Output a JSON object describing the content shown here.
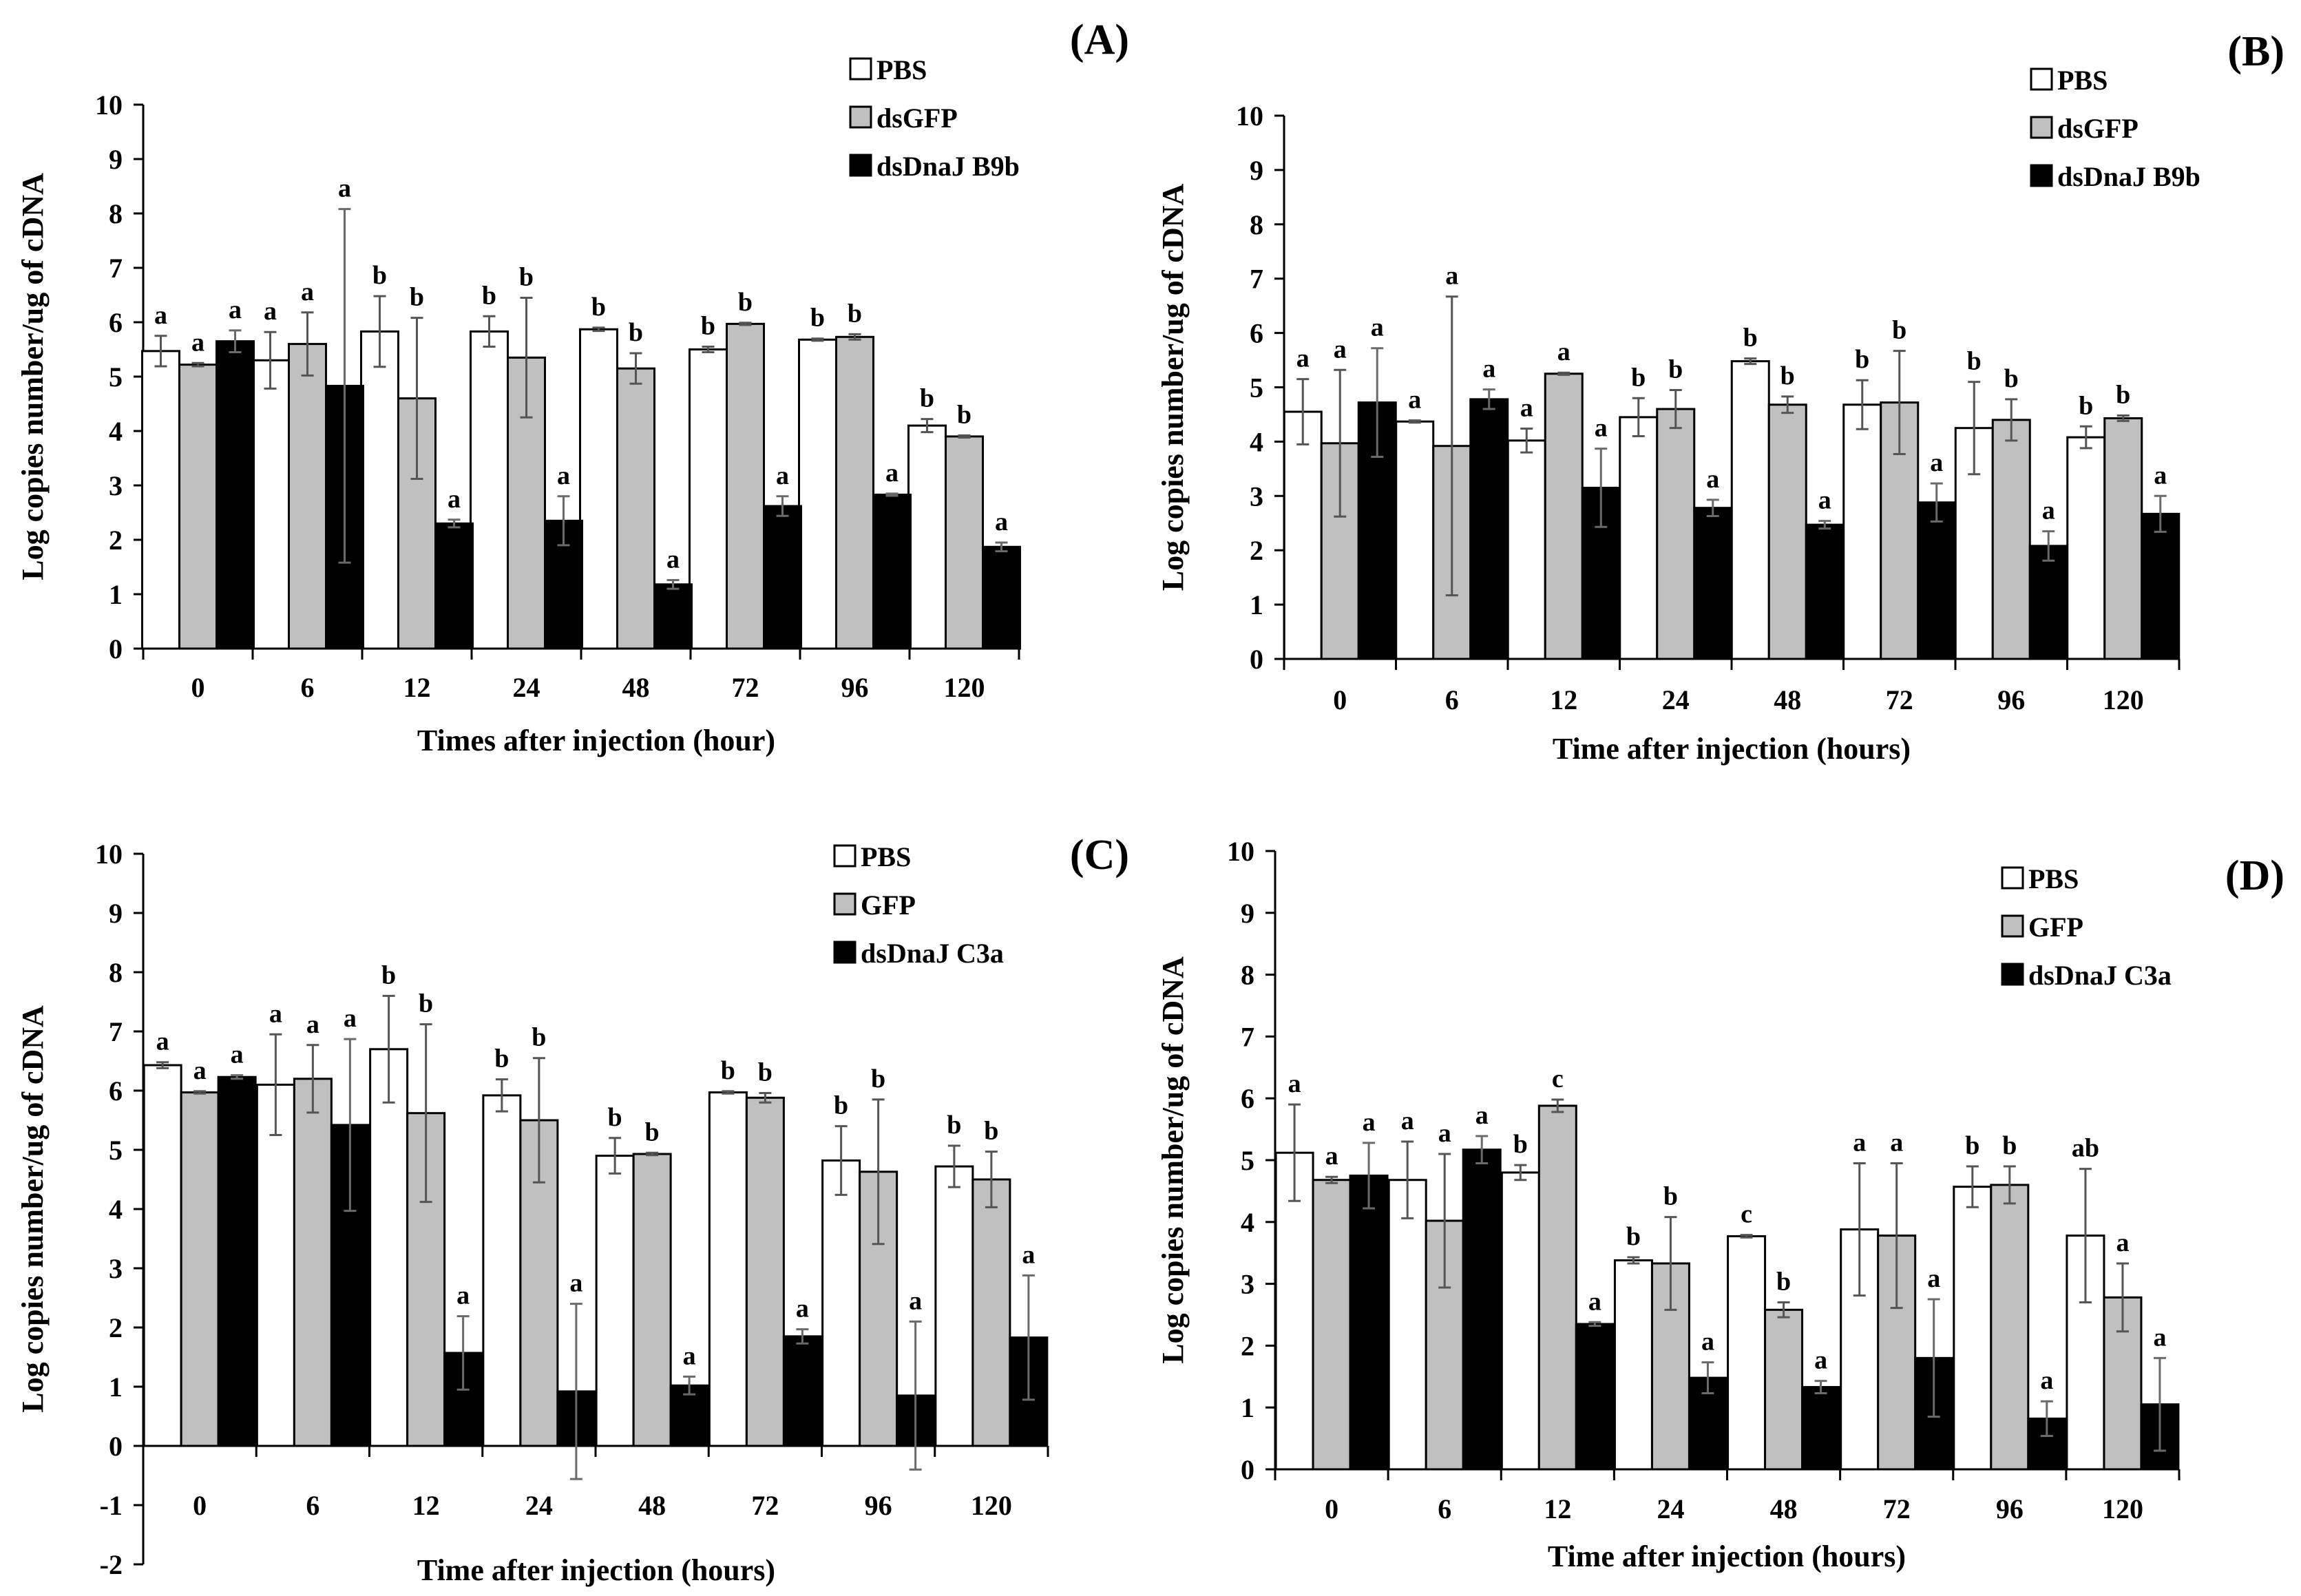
{
  "figure": {
    "description": "Four-panel bar chart figure (A)-(D)"
  },
  "chart_data": [
    {
      "type": "bar",
      "panel": "(A)",
      "title": "(A)",
      "xlabel": "Times after injection  (hour)",
      "ylabel": "Log copies number/ug of cDNA",
      "ylim": [
        0,
        10
      ],
      "yticks": [
        0,
        1,
        2,
        3,
        4,
        5,
        6,
        7,
        8,
        9,
        10
      ],
      "categories": [
        "0",
        "6",
        "12",
        "24",
        "48",
        "72",
        "96",
        "120"
      ],
      "legend": {
        "position": "top-right",
        "entries": [
          "PBS",
          "dsGFP",
          "dsDnaJ B9b"
        ]
      },
      "series": [
        {
          "name": "PBS",
          "color": "#ffffff",
          "values": [
            5.47,
            5.3,
            5.83,
            5.83,
            5.87,
            5.5,
            5.68,
            4.1
          ],
          "errors": [
            0.28,
            0.52,
            0.65,
            0.28,
            0.03,
            0.05,
            0.02,
            0.12
          ],
          "labels": [
            "a",
            "a",
            "b",
            "b",
            "b",
            "b",
            "b",
            "b"
          ]
        },
        {
          "name": "dsGFP",
          "color": "#c0c0c0",
          "values": [
            5.22,
            5.6,
            4.6,
            5.35,
            5.15,
            5.97,
            5.73,
            3.9
          ],
          "errors": [
            0.03,
            0.58,
            1.48,
            1.1,
            0.28,
            0.02,
            0.05,
            0.02
          ],
          "labels": [
            "a",
            "a",
            "b",
            "b",
            "b",
            "b",
            "b",
            "b"
          ]
        },
        {
          "name": "dsDnaJ B9b",
          "color": "#000000",
          "values": [
            5.65,
            4.83,
            2.3,
            2.35,
            1.18,
            2.62,
            2.83,
            1.87
          ],
          "errors": [
            0.2,
            3.25,
            0.07,
            0.45,
            0.08,
            0.18,
            0.02,
            0.08
          ],
          "labels": [
            "a",
            "a",
            "a",
            "a",
            "a",
            "a",
            "a",
            "a"
          ]
        }
      ]
    },
    {
      "type": "bar",
      "panel": "(B)",
      "title": "(B)",
      "xlabel": "Time after injection  (hours)",
      "ylabel": "Log copies number/ug of cDNA",
      "ylim": [
        0,
        10
      ],
      "yticks": [
        0,
        1,
        2,
        3,
        4,
        5,
        6,
        7,
        8,
        9,
        10
      ],
      "categories": [
        "0",
        "6",
        "12",
        "24",
        "48",
        "72",
        "96",
        "120"
      ],
      "legend": {
        "position": "top-right",
        "entries": [
          "PBS",
          "dsGFP",
          "dsDnaJ B9b"
        ]
      },
      "series": [
        {
          "name": "PBS",
          "color": "#ffffff",
          "values": [
            4.55,
            4.37,
            4.02,
            4.45,
            5.48,
            4.68,
            4.25,
            4.08
          ],
          "errors": [
            0.6,
            0.02,
            0.22,
            0.35,
            0.05,
            0.45,
            0.85,
            0.2
          ],
          "labels": [
            "a",
            "a",
            "a",
            "b",
            "b",
            "b",
            "b",
            "b"
          ]
        },
        {
          "name": "dsGFP",
          "color": "#c0c0c0",
          "values": [
            3.97,
            3.92,
            5.25,
            4.6,
            4.68,
            4.72,
            4.4,
            4.43
          ],
          "errors": [
            1.35,
            2.75,
            0.02,
            0.35,
            0.15,
            0.95,
            0.38,
            0.05
          ],
          "labels": [
            "a",
            "a",
            "a",
            "b",
            "b",
            "b",
            "b",
            "b"
          ]
        },
        {
          "name": "dsDnaJ B9b",
          "color": "#000000",
          "values": [
            4.72,
            4.78,
            3.15,
            2.78,
            2.47,
            2.88,
            2.08,
            2.67
          ],
          "errors": [
            1.0,
            0.18,
            0.72,
            0.15,
            0.07,
            0.35,
            0.27,
            0.33
          ],
          "labels": [
            "a",
            "a",
            "a",
            "a",
            "a",
            "a",
            "a",
            "a"
          ]
        }
      ]
    },
    {
      "type": "bar",
      "panel": "(C)",
      "title": "(C)",
      "xlabel": "Time after injection  (hours)",
      "ylabel": "Log copies number/ug of cDNA",
      "ylim": [
        -2,
        10
      ],
      "yticks": [
        -2,
        -1,
        0,
        1,
        2,
        3,
        4,
        5,
        6,
        7,
        8,
        9,
        10
      ],
      "categories": [
        "0",
        "6",
        "12",
        "24",
        "48",
        "72",
        "96",
        "120"
      ],
      "legend": {
        "position": "top-right",
        "entries": [
          "PBS",
          "GFP",
          "dsDnaJ C3a"
        ]
      },
      "series": [
        {
          "name": "PBS",
          "color": "#ffffff",
          "values": [
            6.43,
            6.1,
            6.7,
            5.92,
            4.9,
            5.97,
            4.82,
            4.72
          ],
          "errors": [
            0.05,
            0.85,
            0.9,
            0.27,
            0.3,
            0.02,
            0.58,
            0.35
          ],
          "labels": [
            "a",
            "a",
            "b",
            "b",
            "b",
            "b",
            "b",
            "b"
          ]
        },
        {
          "name": "GFP",
          "color": "#c0c0c0",
          "values": [
            5.97,
            6.2,
            5.62,
            5.5,
            4.93,
            5.88,
            4.63,
            4.5
          ],
          "errors": [
            0.02,
            0.57,
            1.5,
            1.05,
            0.02,
            0.08,
            1.22,
            0.47
          ],
          "labels": [
            "a",
            "a",
            "b",
            "b",
            "b",
            "b",
            "b",
            "b"
          ]
        },
        {
          "name": "dsDnaJ C3a",
          "color": "#000000",
          "values": [
            6.23,
            5.42,
            1.57,
            0.92,
            1.02,
            1.85,
            0.85,
            1.83
          ],
          "errors": [
            0.03,
            1.45,
            0.62,
            1.48,
            0.15,
            0.12,
            1.25,
            1.05
          ],
          "labels": [
            "a",
            "a",
            "a",
            "a",
            "a",
            "a",
            "a",
            "a"
          ]
        }
      ]
    },
    {
      "type": "bar",
      "panel": "(D)",
      "title": "(D)",
      "xlabel": "Time after injection (hours)",
      "ylabel": "Log copies number/ug of cDNA",
      "ylim": [
        0,
        10
      ],
      "yticks": [
        0,
        1,
        2,
        3,
        4,
        5,
        6,
        7,
        8,
        9,
        10
      ],
      "categories": [
        "0",
        "6",
        "12",
        "24",
        "48",
        "72",
        "96",
        "120"
      ],
      "legend": {
        "position": "top-right",
        "entries": [
          "PBS",
          "GFP",
          "dsDnaJ C3a"
        ]
      },
      "series": [
        {
          "name": "PBS",
          "color": "#ffffff",
          "values": [
            5.12,
            4.68,
            4.8,
            3.38,
            3.77,
            3.88,
            4.57,
            3.78
          ],
          "errors": [
            0.78,
            0.62,
            0.12,
            0.05,
            0.02,
            1.07,
            0.33,
            1.08
          ],
          "labels": [
            "a",
            "a",
            "b",
            "b",
            "c",
            "a",
            "b",
            "ab"
          ]
        },
        {
          "name": "GFP",
          "color": "#c0c0c0",
          "values": [
            4.68,
            4.02,
            5.88,
            3.33,
            2.58,
            3.78,
            4.6,
            2.78
          ],
          "errors": [
            0.05,
            1.08,
            0.1,
            0.75,
            0.12,
            1.17,
            0.3,
            0.55
          ],
          "labels": [
            "a",
            "a",
            "c",
            "b",
            "b",
            "a",
            "b",
            "a"
          ]
        },
        {
          "name": "dsDnaJ C3a",
          "color": "#000000",
          "values": [
            4.75,
            5.17,
            2.35,
            1.48,
            1.33,
            1.8,
            0.82,
            1.05
          ],
          "errors": [
            0.53,
            0.22,
            0.03,
            0.25,
            0.1,
            0.95,
            0.28,
            0.75
          ],
          "labels": [
            "a",
            "a",
            "a",
            "a",
            "a",
            "a",
            "a",
            "a"
          ]
        }
      ]
    }
  ]
}
